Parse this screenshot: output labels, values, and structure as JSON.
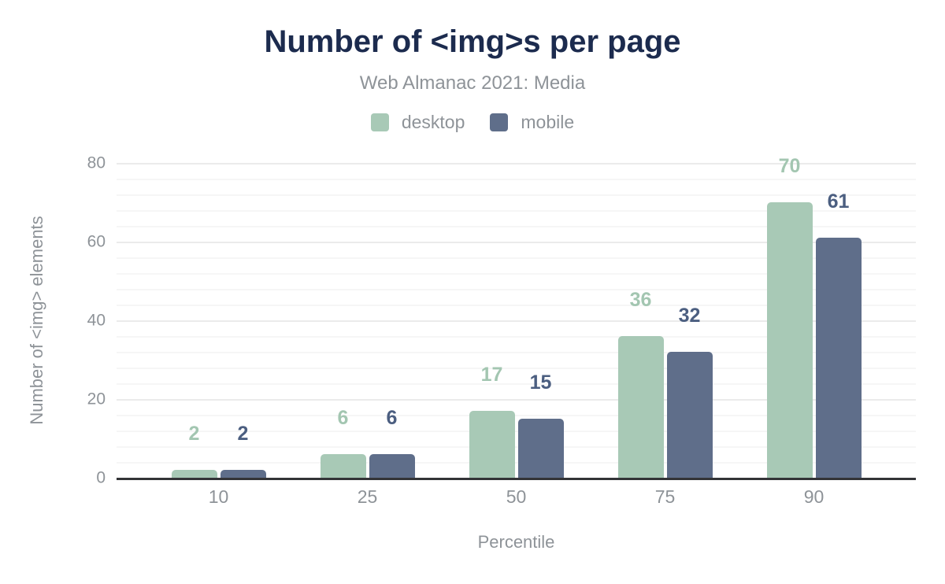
{
  "chart_data": {
    "type": "bar",
    "title": "Number of <img>s per page",
    "subtitle": "Web Almanac 2021: Media",
    "xlabel": "Percentile",
    "ylabel": "Number of <img> elements",
    "categories": [
      "10",
      "25",
      "50",
      "75",
      "90"
    ],
    "series": [
      {
        "name": "desktop",
        "color": "#a8c9b6",
        "label_color": "#a3c6b1",
        "values": [
          2,
          6,
          17,
          36,
          70
        ]
      },
      {
        "name": "mobile",
        "color": "#5f6e8a",
        "label_color": "#4b5e80",
        "values": [
          2,
          6,
          15,
          32,
          61
        ]
      }
    ],
    "ylim": [
      0,
      80
    ],
    "yticks": [
      0,
      20,
      40,
      60,
      80
    ],
    "minor_tick_step": 4,
    "grid": "on",
    "legend_position": "top",
    "data_labels": "above-bars",
    "colors": {
      "title_text": "#1c2b4e",
      "muted_text": "#8e9398",
      "axis_line": "#333437",
      "grid_major": "#ebebeb",
      "grid_minor": "#f6f6f6",
      "background": "#ffffff"
    }
  }
}
